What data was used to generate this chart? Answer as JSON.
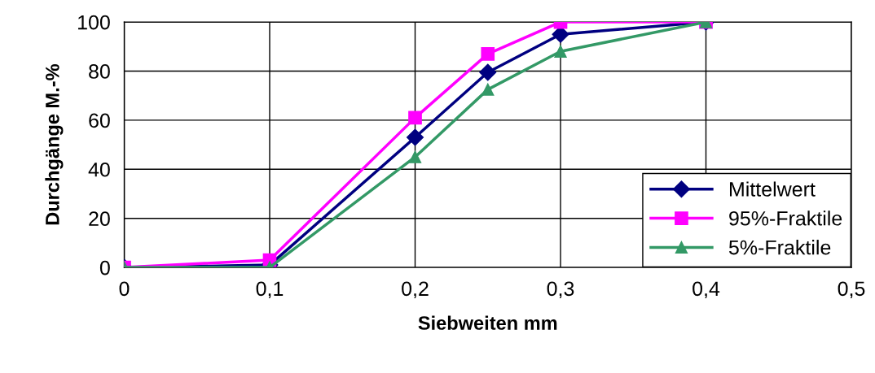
{
  "chart_data": {
    "type": "line",
    "xlabel": "Siebweiten mm",
    "ylabel": "Durchgänge M.-%",
    "x": [
      0,
      0.1,
      0.2,
      0.25,
      0.3,
      0.4
    ],
    "series": [
      {
        "name": "Mittelwert",
        "color": "#000080",
        "marker": "diamond",
        "values": [
          0,
          1,
          53,
          79.5,
          95,
          100
        ]
      },
      {
        "name": "95%-Fraktile",
        "color": "#ff00ff",
        "marker": "square",
        "values": [
          0,
          3,
          61,
          87,
          100,
          100
        ]
      },
      {
        "name": "5%-Fraktile",
        "color": "#339966",
        "marker": "triangle",
        "values": [
          0,
          0,
          45,
          72.5,
          88,
          100
        ]
      }
    ],
    "xlim": [
      0,
      0.5
    ],
    "xticks": [
      {
        "value": 0,
        "label": "0"
      },
      {
        "value": 0.1,
        "label": "0,1"
      },
      {
        "value": 0.2,
        "label": "0,2"
      },
      {
        "value": 0.3,
        "label": "0,3"
      },
      {
        "value": 0.4,
        "label": "0,4"
      },
      {
        "value": 0.5,
        "label": "0,5"
      }
    ],
    "ylim": [
      0,
      100
    ],
    "yticks": [
      0,
      20,
      40,
      60,
      80,
      100
    ],
    "grid": true,
    "legend": "bottom right",
    "line_style": "solid"
  }
}
